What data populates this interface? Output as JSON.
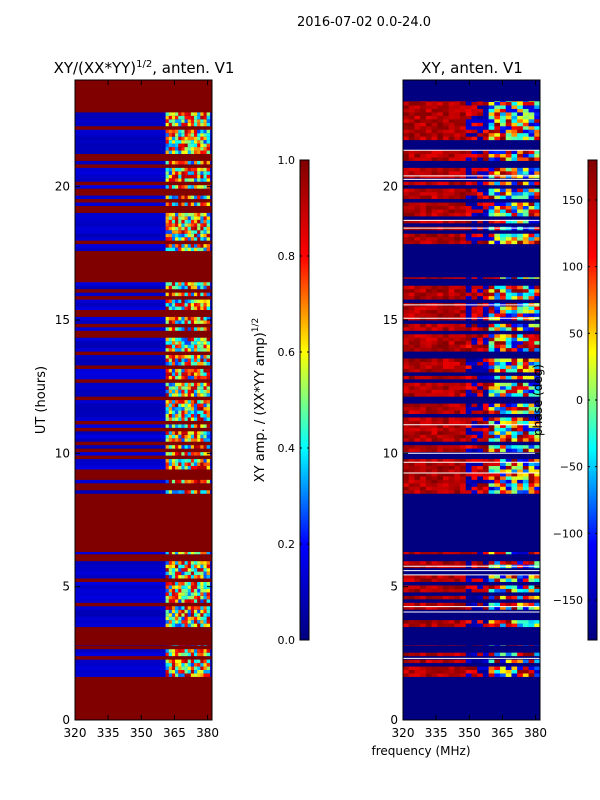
{
  "suptitle": "2016-07-02 0.0-24.0",
  "colors": {
    "jet": [
      "#000080",
      "#0000ff",
      "#00ffff",
      "#ffff00",
      "#ff0000",
      "#800000"
    ],
    "background": "#ffffff",
    "axis": "#000000",
    "row_white": "#ffffff"
  },
  "chart_data": [
    {
      "type": "heatmap",
      "name": "amplitude-ratio",
      "title_main": "XY/(XX*YY)",
      "title_sup": "1/2",
      "title_tail": ", anten. V1",
      "xlabel": "",
      "ylabel": "UT (hours)",
      "xlim": [
        320,
        382
      ],
      "ylim": [
        0,
        24
      ],
      "xticks": [
        320,
        335,
        350,
        365,
        380
      ],
      "yticks": [
        0,
        5,
        10,
        15,
        20
      ],
      "channel_band_mhz": [
        361,
        381
      ],
      "observed_ut_intervals": [
        [
          1.5,
          2.8
        ],
        [
          3.5,
          6.3
        ],
        [
          8.5,
          16.6
        ],
        [
          17.6,
          23.2
        ]
      ],
      "flagged_value": 1.0,
      "typical_value": 0.1,
      "colorbar": {
        "label_main": "XY amp. / (XX*YY amp)",
        "label_sup": "1/2",
        "range": [
          0.0,
          1.0
        ],
        "ticks": [
          "0.0",
          "0.2",
          "0.4",
          "0.6",
          "0.8",
          "1.0"
        ],
        "tick_values": [
          0.0,
          0.2,
          0.4,
          0.6,
          0.8,
          1.0
        ]
      }
    },
    {
      "type": "heatmap",
      "name": "phase",
      "title": "XY, anten. V1",
      "xlabel": "frequency (MHz)",
      "ylabel": "",
      "xlim": [
        320,
        382
      ],
      "ylim": [
        0,
        24
      ],
      "xticks": [
        320,
        335,
        350,
        365,
        380
      ],
      "yticks": [
        0,
        5,
        10,
        15,
        20
      ],
      "observed_ut_intervals": [
        [
          1.5,
          2.8
        ],
        [
          3.5,
          6.3
        ],
        [
          8.5,
          16.6
        ],
        [
          17.6,
          23.2
        ]
      ],
      "flagged_value": -180,
      "colorbar": {
        "label": "phase (deg)",
        "range": [
          -180,
          180
        ],
        "ticks": [
          "−150",
          "−100",
          "−50",
          "0",
          "50",
          "100",
          "150"
        ],
        "tick_values": [
          -150,
          -100,
          -50,
          0,
          50,
          100,
          150
        ]
      }
    }
  ]
}
